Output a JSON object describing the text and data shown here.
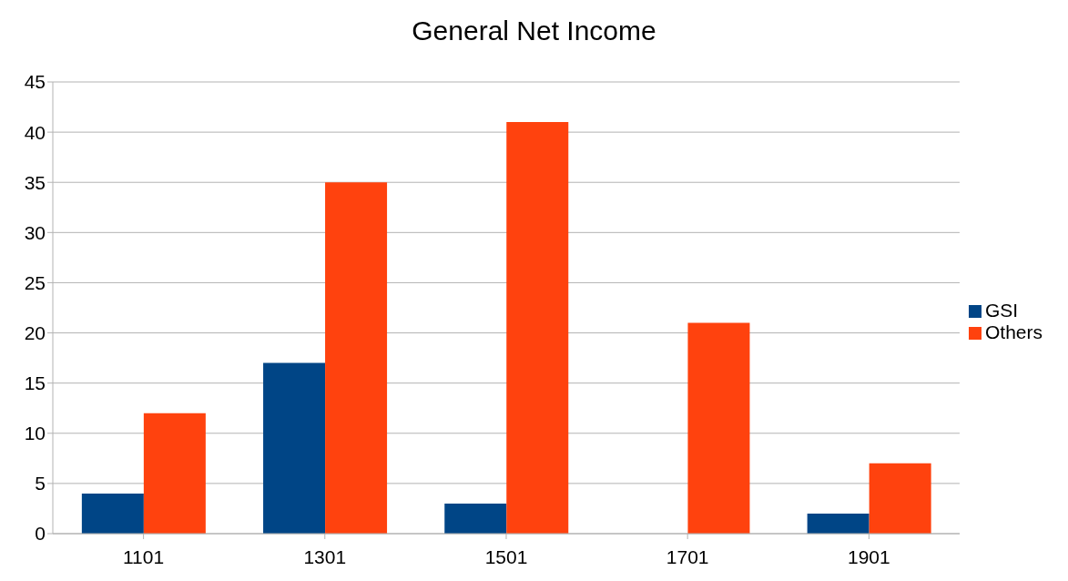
{
  "chart_data": {
    "type": "bar",
    "title": "General Net Income",
    "categories": [
      "1101",
      "1301",
      "1501",
      "1701",
      "1901"
    ],
    "series": [
      {
        "name": "GSI",
        "color": "#004586",
        "values": [
          4,
          17,
          3,
          0,
          2
        ]
      },
      {
        "name": "Others",
        "color": "#ff420e",
        "values": [
          12,
          35,
          41,
          21,
          7
        ]
      }
    ],
    "ylim": [
      0,
      45
    ],
    "yticks": [
      0,
      5,
      10,
      15,
      20,
      25,
      30,
      35,
      40,
      45
    ],
    "grid": "y",
    "legend": "right"
  }
}
